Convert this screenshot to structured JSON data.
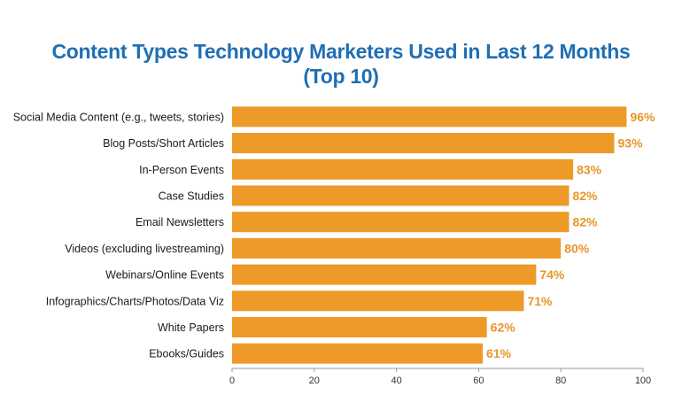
{
  "chart_data": {
    "type": "bar",
    "orientation": "horizontal",
    "title_lines": [
      "Content Types Technology Marketers Used in Last 12 Months",
      "(Top 10)"
    ],
    "categories": [
      "Social Media Content (e.g., tweets, stories)",
      "Blog Posts/Short Articles",
      "In-Person Events",
      "Case Studies",
      "Email Newsletters",
      "Videos (excluding livestreaming)",
      "Webinars/Online Events",
      "Infographics/Charts/Photos/Data Viz",
      "White Papers",
      "Ebooks/Guides"
    ],
    "values": [
      96,
      93,
      83,
      82,
      82,
      80,
      74,
      71,
      62,
      61
    ],
    "value_labels": [
      "96%",
      "93%",
      "83%",
      "82%",
      "82%",
      "80%",
      "74%",
      "71%",
      "62%",
      "61%"
    ],
    "xlim": [
      0,
      100
    ],
    "xticks": [
      "0",
      "20",
      "40",
      "60",
      "80",
      "100"
    ],
    "grid": false,
    "colors": {
      "bar": "#ee9a28",
      "label": "#e8952a",
      "title": "#1f6fb4",
      "axis": "#999999"
    }
  }
}
